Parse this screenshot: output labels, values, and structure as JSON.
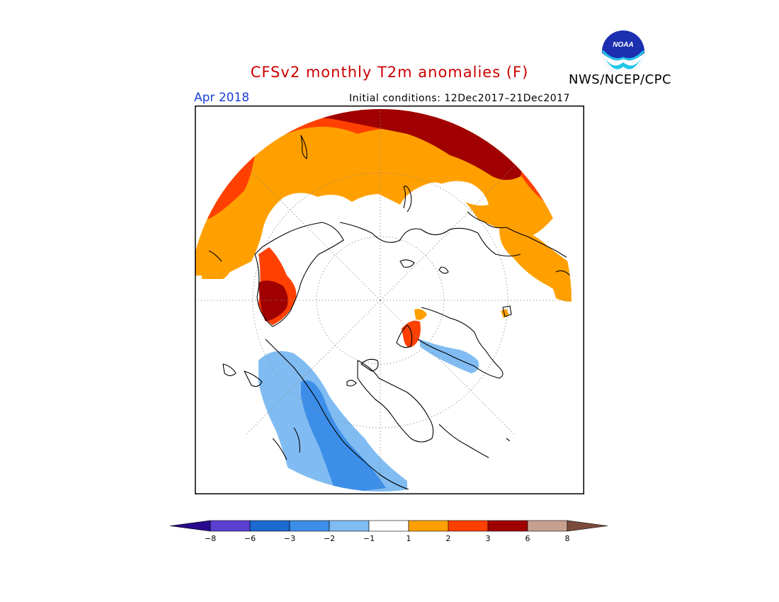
{
  "header": {
    "title": "CFSv2 monthly T2m anomalies (F)",
    "month": "Apr 2018",
    "initial_conditions": "Initial conditions: 12Dec2017–21Dec2017",
    "agency": "NWS/NCEP/CPC",
    "logo_text": "NOAA"
  },
  "colors": {
    "title": "#cc0000",
    "month": "#1a3fd6",
    "anom_neg8": "#2a0a8c",
    "anom_neg6": "#5a3fd2",
    "anom_neg3": "#1c69d1",
    "anom_neg2": "#3d8ee8",
    "anom_neg1": "#80bcf2",
    "anom_0": "#ffffff",
    "anom_pos1": "#ffa000",
    "anom_pos2": "#ff4000",
    "anom_pos3": "#a00000",
    "anom_pos6": "#c8a090",
    "anom_pos8": "#7a4a3a"
  },
  "legend": {
    "ticks": [
      "−8",
      "−6",
      "−3",
      "−2",
      "−1",
      "1",
      "2",
      "3",
      "6",
      "8"
    ]
  }
}
